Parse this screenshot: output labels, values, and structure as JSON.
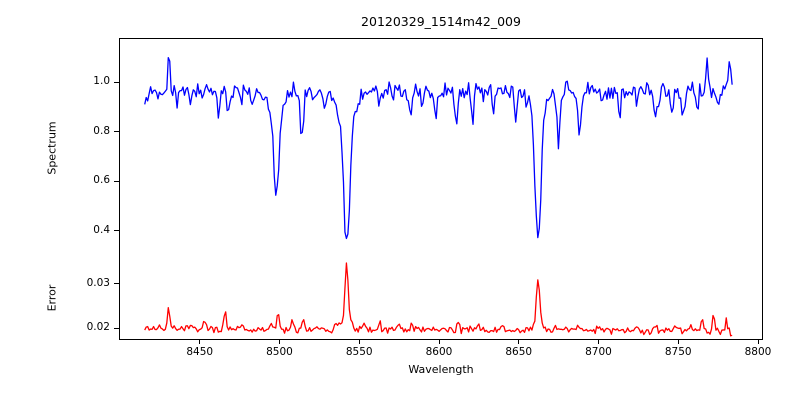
{
  "chart_data": {
    "type": "line",
    "title": "20120329_1514m42_009",
    "xlabel": "Wavelength",
    "xlim": [
      8400,
      8802.5
    ],
    "xticks": [
      8450,
      8500,
      8550,
      8600,
      8650,
      8700,
      8750,
      8800
    ],
    "xtick_labels": [
      "8450",
      "8500",
      "8550",
      "8600",
      "8650",
      "8700",
      "8750",
      "8800"
    ],
    "x_data_range": [
      8415.5,
      8784
    ],
    "grid": false,
    "legend": "none",
    "key_values": {
      "spectrum_continuum_level": 0.97,
      "ca_triplet_absorption_minima": {
        "8498": 0.54,
        "8542": 0.34,
        "8662": 0.36
      },
      "spectrum_max_spike": {
        "wavelength": 8430,
        "value": 1.12
      },
      "error_baseline": 0.0197,
      "error_peaks": {
        "8430": 0.025,
        "8466": 0.025,
        "8498": 0.025,
        "8542": 0.0345,
        "8662": 0.032
      }
    },
    "panels": [
      {
        "name": "spectrum",
        "ylabel": "Spectrum",
        "color": "#0000ff",
        "ylim": [
          0.295,
          1.175
        ],
        "yticks": [
          0.4,
          0.6,
          0.8,
          1.0
        ],
        "ytick_labels": [
          "0.4",
          "0.6",
          "0.8",
          "1.0"
        ],
        "series": {
          "x_start": 8415.5,
          "x_step": 0.923,
          "n_points": 400,
          "baseline": 0.965,
          "baseline_slope": 0,
          "noise_amp": 0.048,
          "seed": 12345,
          "features": [
            [
              8417,
              -0.045,
              0.8
            ],
            [
              8424,
              -0.05,
              0.9
            ],
            [
              8430.5,
              0.155,
              0.7
            ],
            [
              8436,
              -0.06,
              0.8
            ],
            [
              8444,
              -0.05,
              0.8
            ],
            [
              8452,
              -0.045,
              0.8
            ],
            [
              8462,
              -0.09,
              0.9
            ],
            [
              8468,
              -0.1,
              0.8
            ],
            [
              8476,
              -0.05,
              0.8
            ],
            [
              8483,
              -0.06,
              0.8
            ],
            [
              8498,
              -0.1,
              4
            ],
            [
              8498,
              -0.33,
              1.4
            ],
            [
              8514,
              -0.19,
              1.1
            ],
            [
              8521,
              -0.06,
              0.9
            ],
            [
              8528,
              -0.07,
              0.9
            ],
            [
              8542.1,
              -0.12,
              5
            ],
            [
              8542.1,
              -0.5,
              1.9
            ],
            [
              8563,
              -0.05,
              0.9
            ],
            [
              8571,
              -0.04,
              0.8
            ],
            [
              8582,
              -0.1,
              0.9
            ],
            [
              8590,
              -0.05,
              0.8
            ],
            [
              8598,
              -0.11,
              1.0
            ],
            [
              8611,
              -0.13,
              1.0
            ],
            [
              8621,
              -0.11,
              0.9
            ],
            [
              8634,
              -0.06,
              0.9
            ],
            [
              8648,
              -0.1,
              0.9
            ],
            [
              8662.1,
              -0.11,
              4.5
            ],
            [
              8662.1,
              -0.5,
              1.8
            ],
            [
              8675,
              -0.2,
              1.1
            ],
            [
              8688,
              -0.18,
              1.1
            ],
            [
              8702,
              -0.06,
              0.9
            ],
            [
              8713,
              -0.09,
              0.9
            ],
            [
              8724,
              -0.06,
              0.8
            ],
            [
              8736,
              -0.13,
              1.0
            ],
            [
              8746,
              -0.07,
              0.9
            ],
            [
              8753,
              -0.09,
              0.9
            ],
            [
              8762,
              -0.06,
              0.8
            ],
            [
              8768,
              0.12,
              0.7
            ],
            [
              8775,
              -0.08,
              0.9
            ],
            [
              8782,
              0.1,
              0.8
            ]
          ]
        }
      },
      {
        "name": "error",
        "ylabel": "Error",
        "color": "#ff0000",
        "ylim": [
          0.0176,
          0.036
        ],
        "yticks": [
          0.02,
          0.03
        ],
        "ytick_labels": [
          "0.02",
          "0.03"
        ],
        "series": {
          "x_start": 8415.5,
          "x_step": 0.923,
          "n_points": 400,
          "baseline": 0.0199,
          "baseline_slope": -1.4e-06,
          "noise_amp": 0.001,
          "seed": 67890,
          "features": [
            [
              8424,
              0.0008,
              0.7
            ],
            [
              8430.5,
              0.005,
              0.7
            ],
            [
              8444,
              0.0008,
              0.7
            ],
            [
              8453,
              0.0018,
              0.7
            ],
            [
              8466,
              0.0048,
              0.7
            ],
            [
              8476,
              0.0008,
              0.7
            ],
            [
              8495,
              0.0022,
              0.8
            ],
            [
              8499,
              0.0042,
              0.8
            ],
            [
              8508,
              0.0016,
              0.7
            ],
            [
              8515,
              0.002,
              0.8
            ],
            [
              8523,
              0.0012,
              0.8
            ],
            [
              8536,
              0.0014,
              0.7
            ],
            [
              8542.1,
              0.002,
              3
            ],
            [
              8542.1,
              0.0125,
              1.0
            ],
            [
              8553,
              0.0012,
              0.8
            ],
            [
              8563,
              0.0018,
              0.7
            ],
            [
              8575,
              0.0008,
              0.7
            ],
            [
              8583,
              0.0012,
              0.7
            ],
            [
              8598,
              0.0008,
              0.7
            ],
            [
              8612,
              0.002,
              0.7
            ],
            [
              8625,
              0.0008,
              0.7
            ],
            [
              8640,
              0.0006,
              0.7
            ],
            [
              8662.1,
              0.0015,
              3
            ],
            [
              8662.1,
              0.01,
              1.0
            ],
            [
              8673,
              0.001,
              0.8
            ],
            [
              8688,
              0.0008,
              0.8
            ],
            [
              8700,
              0.0008,
              0.7
            ],
            [
              8712,
              0.0006,
              0.7
            ],
            [
              8725,
              0.0008,
              0.7
            ],
            [
              8736,
              0.0012,
              0.7
            ],
            [
              8748,
              0.0014,
              0.7
            ],
            [
              8758,
              0.0018,
              0.7
            ],
            [
              8765,
              0.0022,
              0.7
            ],
            [
              8772,
              0.003,
              0.7
            ],
            [
              8780,
              0.0026,
              0.6
            ],
            [
              8784,
              -0.0014,
              0.8
            ]
          ]
        }
      }
    ]
  }
}
